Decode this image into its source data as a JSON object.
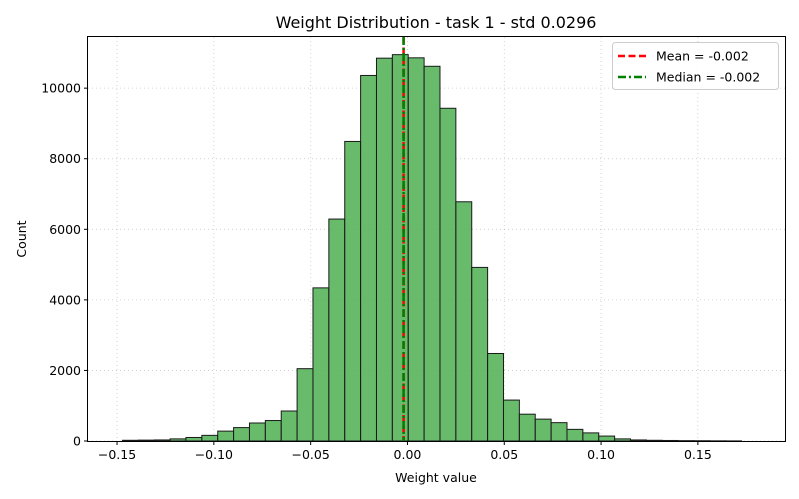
{
  "chart_data": {
    "type": "bar",
    "title": "Weight Distribution - task 1 - std 0.0296",
    "xlabel": "Weight value",
    "ylabel": "Count",
    "xlim": [
      -0.165,
      0.195
    ],
    "ylim": [
      0,
      11450
    ],
    "xticks": [
      -0.15,
      -0.1,
      -0.05,
      0.0,
      0.05,
      0.1,
      0.15
    ],
    "xtick_labels": [
      "−0.15",
      "−0.10",
      "−0.05",
      "0.00",
      "0.05",
      "0.10",
      "0.15"
    ],
    "yticks": [
      0,
      2000,
      4000,
      6000,
      8000,
      10000
    ],
    "ytick_labels": [
      "0",
      "2000",
      "4000",
      "6000",
      "8000",
      "10000"
    ],
    "grid": true,
    "legend_position": "top-right",
    "bar_color": "#4caf50",
    "bin_edges": [
      -0.1472,
      -0.139,
      -0.1308,
      -0.1226,
      -0.1144,
      -0.1062,
      -0.098,
      -0.0898,
      -0.0816,
      -0.0734,
      -0.0652,
      -0.057,
      -0.0488,
      -0.0406,
      -0.0324,
      -0.0242,
      -0.016,
      -0.0078,
      0.0004,
      0.0086,
      0.0168,
      0.025,
      0.0332,
      0.0414,
      0.0496,
      0.0578,
      0.066,
      0.0742,
      0.0824,
      0.0906,
      0.0988,
      0.107,
      0.1152,
      0.1234,
      0.1316,
      0.1398,
      0.148,
      0.1562,
      0.1644,
      0.1726
    ],
    "counts": [
      20,
      25,
      30,
      60,
      100,
      160,
      280,
      380,
      510,
      580,
      850,
      2050,
      4340,
      6290,
      8490,
      10360,
      10850,
      10950,
      10860,
      10620,
      9430,
      6780,
      4920,
      2480,
      1160,
      760,
      620,
      520,
      330,
      230,
      140,
      60,
      30,
      20,
      15,
      10,
      8,
      5,
      3
    ],
    "vlines": [
      {
        "name": "Mean = -0.002",
        "x": -0.002,
        "color": "#ff0000",
        "style": "dashed"
      },
      {
        "name": "Median = -0.002",
        "x": -0.002,
        "color": "#008000",
        "style": "dashdot"
      }
    ]
  }
}
